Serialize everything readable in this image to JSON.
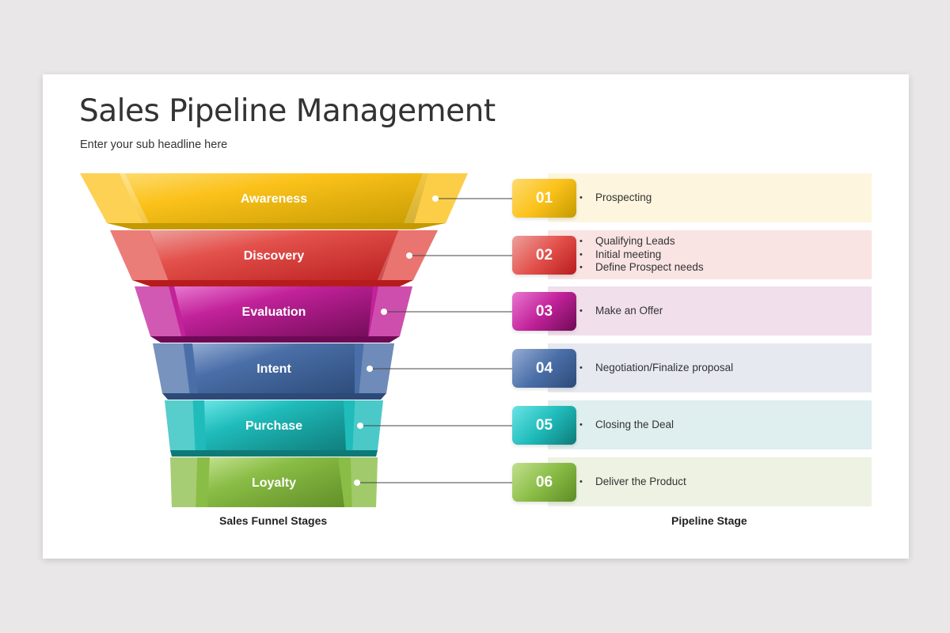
{
  "title": "Sales Pipeline Management",
  "subtitle": "Enter your sub headline here",
  "funnel_caption": "Sales Funnel Stages",
  "pipeline_caption": "Pipeline Stage",
  "stages": [
    {
      "label": "Awareness",
      "number": "01",
      "items": [
        "Prospecting"
      ],
      "color": "#fcc21b",
      "dark": "#c49a00",
      "light": "#fddb70",
      "panel": "#fdf5de"
    },
    {
      "label": "Discovery",
      "number": "02",
      "items": [
        "Qualifying Leads",
        "Initial meeting",
        "Define Prospect needs"
      ],
      "color": "#e4524d",
      "dark": "#b71c1c",
      "light": "#eca09c",
      "panel": "#f9e3e3"
    },
    {
      "label": "Evaluation",
      "number": "03",
      "items": [
        "Make an Offer"
      ],
      "color": "#c2229a",
      "dark": "#6e0a55",
      "light": "#e777cf",
      "panel": "#f1dfec"
    },
    {
      "label": "Intent",
      "number": "04",
      "items": [
        "Negotiation/Finalize proposal"
      ],
      "color": "#4a6fa8",
      "dark": "#2c4a78",
      "light": "#94abd3",
      "panel": "#e6e9f0"
    },
    {
      "label": "Purchase",
      "number": "05",
      "items": [
        "Closing the Deal"
      ],
      "color": "#1fbcbb",
      "dark": "#0e7a78",
      "light": "#6ae4e4",
      "panel": "#dfeeee"
    },
    {
      "label": "Loyalty",
      "number": "06",
      "items": [
        "Deliver the Product"
      ],
      "color": "#8abd46",
      "dark": "#5e8c25",
      "light": "#c2e08e",
      "panel": "#edf2e3"
    }
  ]
}
